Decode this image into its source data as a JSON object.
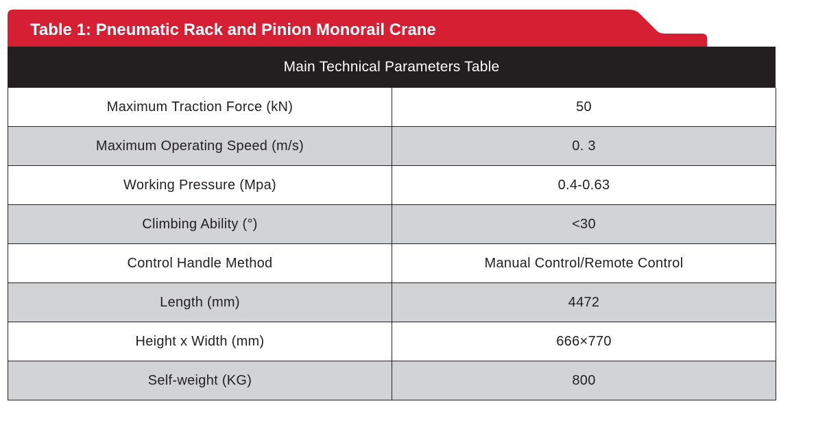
{
  "title": "Table 1: Pneumatic Rack and Pinion Monorail Crane",
  "colors": {
    "banner_red": "#d71f34",
    "banner_tab_red": "#e32a46",
    "header_dark": "#231f20",
    "row_shaded": "#d1d3d4"
  },
  "table": {
    "header": "Main Technical Parameters Table",
    "rows": [
      {
        "parameter": "Maximum Traction Force (kN)",
        "value": "50"
      },
      {
        "parameter": "Maximum Operating Speed (m/s)",
        "value": "0. 3"
      },
      {
        "parameter": "Working Pressure (Mpa)",
        "value": "0.4-0.63"
      },
      {
        "parameter": "Climbing Ability (°)",
        "value": "<30"
      },
      {
        "parameter": "Control Handle Method",
        "value": "Manual Control/Remote Control"
      },
      {
        "parameter": "Length (mm)",
        "value": "4472"
      },
      {
        "parameter": "Height x Width (mm)",
        "value": "666×770"
      },
      {
        "parameter": "Self-weight (KG)",
        "value": "800"
      }
    ]
  }
}
